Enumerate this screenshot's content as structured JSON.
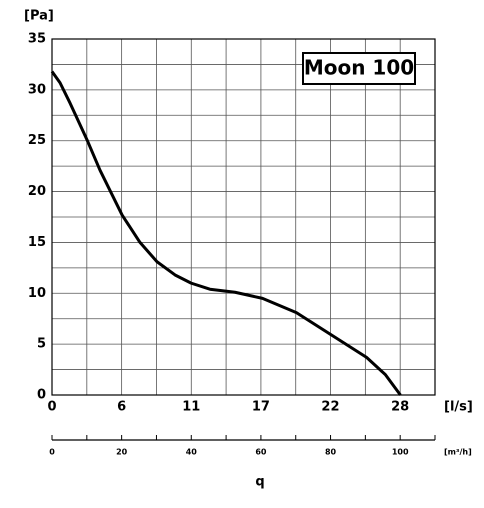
{
  "chart_data": {
    "type": "line",
    "y_label": "[Pa]",
    "x_label": "[l/s]",
    "x2_label": "[m³/h]",
    "bottom_label": "q",
    "annotation": "Moon 100",
    "x": [
      0,
      0.64,
      1.44,
      2.79,
      3.83,
      5.59,
      7.02,
      8.38,
      9.82,
      11.1,
      12.6,
      14.6,
      16.8,
      19.5,
      22.3,
      25.1,
      26.6,
      27.8
    ],
    "series": [
      {
        "color": "#000000",
        "values": [
          31.8,
          30.7,
          28.7,
          25.1,
          22.1,
          17.7,
          15.0,
          13.1,
          11.8,
          11.0,
          10.4,
          10.1,
          9.5,
          8.1,
          5.9,
          3.7,
          2.0,
          0
        ]
      }
    ],
    "xlim": [
      0,
      30.56
    ],
    "xticks": [
      0,
      {
        "value": 5.56,
        "label": "6"
      },
      {
        "value": 11.11,
        "label": "11"
      },
      {
        "value": 16.67,
        "label": "17"
      },
      {
        "value": 22.22,
        "label": "22"
      },
      {
        "value": 27.78,
        "label": "28"
      }
    ],
    "ylim": [
      0,
      35
    ],
    "yticks": [
      0,
      5,
      10,
      15,
      20,
      25,
      30,
      35
    ],
    "yticks_minor": [
      2.5,
      7.5,
      12.5,
      17.5,
      22.5,
      27.5,
      32.5
    ],
    "x2lim": [
      0,
      110
    ],
    "x2ticks": [
      0,
      20,
      40,
      60,
      80,
      100
    ],
    "x2ticks_minor": [
      10,
      30,
      50,
      70,
      90,
      110
    ],
    "grid": true
  }
}
